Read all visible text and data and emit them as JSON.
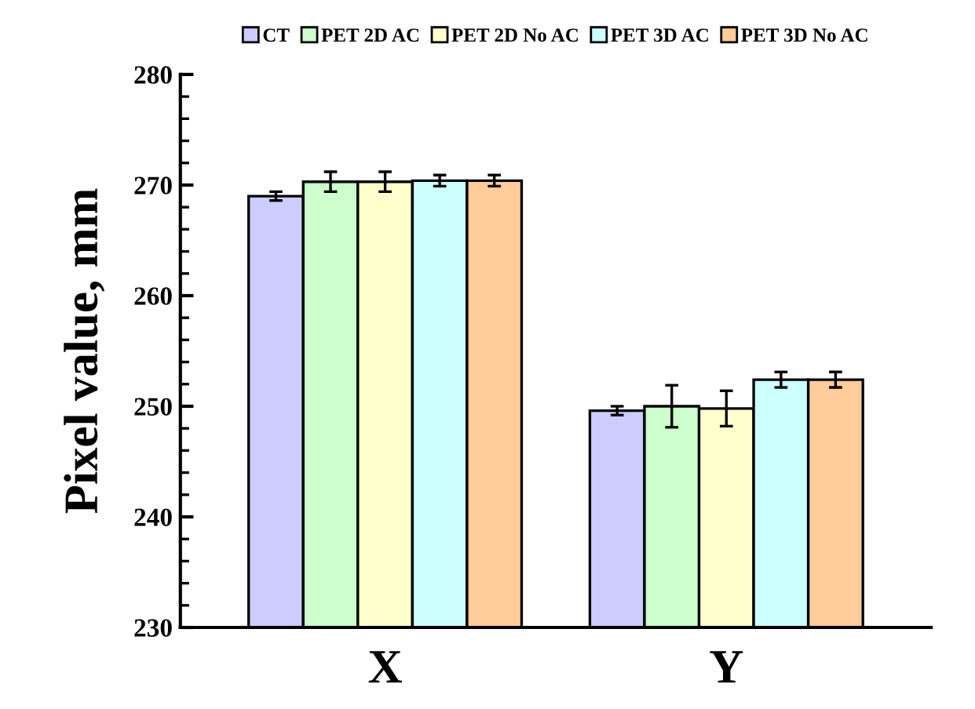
{
  "chart_data": {
    "type": "bar",
    "ylabel": "Pixel value, mm",
    "categories": [
      "X",
      "Y"
    ],
    "ylim": [
      230,
      280
    ],
    "yticks": [
      230,
      240,
      250,
      260,
      270,
      280
    ],
    "grid": false,
    "legend": "top",
    "series": [
      {
        "name": "CT",
        "color": "#ccccff",
        "values": [
          269.0,
          249.6
        ],
        "errors": [
          0.4,
          0.4
        ]
      },
      {
        "name": "PET 2D AC",
        "color": "#ccffcc",
        "values": [
          270.3,
          250.0
        ],
        "errors": [
          0.9,
          1.9
        ]
      },
      {
        "name": "PET 2D No AC",
        "color": "#ffffcc",
        "values": [
          270.3,
          249.8
        ],
        "errors": [
          0.9,
          1.6
        ]
      },
      {
        "name": "PET 3D AC",
        "color": "#ccffff",
        "values": [
          270.4,
          252.4
        ],
        "errors": [
          0.5,
          0.7
        ]
      },
      {
        "name": "PET 3D No AC",
        "color": "#ffcc99",
        "values": [
          270.4,
          252.4
        ],
        "errors": [
          0.5,
          0.7
        ]
      }
    ]
  }
}
